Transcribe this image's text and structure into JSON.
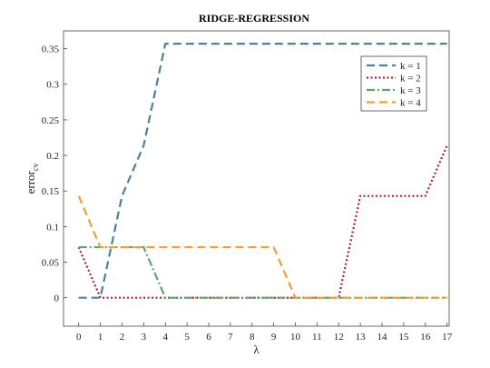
{
  "chart_data": {
    "type": "line",
    "title": "RIDGE-REGRESSION",
    "xlabel": "λ",
    "ylabel": "error",
    "ylabel_subscript": "cv",
    "x": [
      0,
      1,
      2,
      3,
      4,
      5,
      6,
      7,
      8,
      9,
      10,
      11,
      12,
      13,
      14,
      15,
      16,
      17
    ],
    "x_tick_labels": [
      "0",
      "1",
      "2",
      "3",
      "4",
      "5",
      "6",
      "7",
      "8",
      "9",
      "10",
      "11",
      "12",
      "13",
      "14",
      "15",
      "16",
      "17"
    ],
    "y_ticks": [
      0,
      0.05,
      0.1,
      0.15,
      0.2,
      0.25,
      0.3,
      0.35
    ],
    "y_tick_labels": [
      "0",
      "0.05",
      "0.1",
      "0.15",
      "0.2",
      "0.25",
      "0.3",
      "0.35"
    ],
    "xlim": [
      -0.7,
      17.1
    ],
    "ylim": [
      -0.04,
      0.375
    ],
    "grid": false,
    "legend_position": "top-right",
    "series": [
      {
        "name": "k = 1",
        "color": "#4f7f99",
        "dash": "dashed",
        "values": [
          0,
          0,
          0.143,
          0.214,
          0.357,
          0.357,
          0.357,
          0.357,
          0.357,
          0.357,
          0.357,
          0.357,
          0.357,
          0.357,
          0.357,
          0.357,
          0.357,
          0.357
        ]
      },
      {
        "name": "k = 2",
        "color": "#a8233a",
        "dash": "dotted",
        "values": [
          0.071,
          0,
          0,
          0,
          0,
          0,
          0,
          0,
          0,
          0,
          0,
          0,
          0,
          0.143,
          0.143,
          0.143,
          0.143,
          0.214
        ]
      },
      {
        "name": "k = 3",
        "color": "#5fa570",
        "dash": "dashdot",
        "values": [
          0.071,
          0.071,
          0.071,
          0.071,
          0,
          0,
          0,
          0,
          0,
          0,
          0,
          0,
          0,
          0,
          0,
          0,
          0,
          0
        ]
      },
      {
        "name": "k = 4",
        "color": "#f0a030",
        "dash": "dashed",
        "values": [
          0.143,
          0.071,
          0.071,
          0.071,
          0.071,
          0.071,
          0.071,
          0.071,
          0.071,
          0.071,
          0,
          0,
          0,
          0,
          0,
          0,
          0,
          0
        ]
      }
    ]
  }
}
